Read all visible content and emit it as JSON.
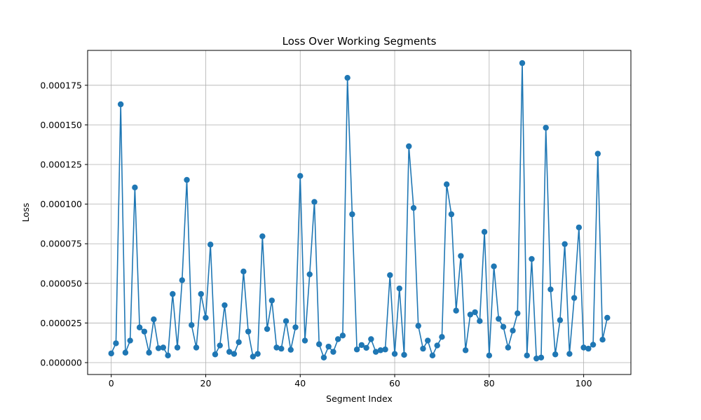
{
  "chart_data": {
    "type": "line",
    "title": "Loss Over Working Segments",
    "xlabel": "Segment Index",
    "ylabel": "Loss",
    "xlim": [
      -5,
      110
    ],
    "ylim": [
      -7.5e-06,
      0.000197
    ],
    "xticks": [
      0,
      20,
      40,
      60,
      80,
      100
    ],
    "xtick_labels": [
      "0",
      "20",
      "40",
      "60",
      "80",
      "100"
    ],
    "yticks": [
      0,
      2.5e-05,
      5e-05,
      7.5e-05,
      0.0001,
      0.000125,
      0.00015,
      0.000175
    ],
    "ytick_labels": [
      "0.000000",
      "0.000025",
      "0.000050",
      "0.000075",
      "0.000100",
      "0.000125",
      "0.000150",
      "0.000175"
    ],
    "grid": true,
    "marker": "circle",
    "color": "#1f77b4",
    "x": [
      0,
      1,
      2,
      3,
      4,
      5,
      6,
      7,
      8,
      9,
      10,
      11,
      12,
      13,
      14,
      15,
      16,
      17,
      18,
      19,
      20,
      21,
      22,
      23,
      24,
      25,
      26,
      27,
      28,
      29,
      30,
      31,
      32,
      33,
      34,
      35,
      36,
      37,
      38,
      39,
      40,
      41,
      42,
      43,
      44,
      45,
      46,
      47,
      48,
      49,
      50,
      51,
      52,
      53,
      54,
      55,
      56,
      57,
      58,
      59,
      60,
      61,
      62,
      63,
      64,
      65,
      66,
      67,
      68,
      69,
      70,
      71,
      72,
      73,
      74,
      75,
      76,
      77,
      78,
      79,
      80,
      81,
      82,
      83,
      84,
      85,
      86,
      87,
      88,
      89,
      90,
      91,
      92,
      93,
      94,
      95,
      96,
      97,
      98,
      99,
      100,
      101,
      102,
      103,
      104,
      105
    ],
    "y": [
      5.8e-06,
      1.22e-05,
      0.000163,
      6.3e-06,
      1.39e-05,
      0.0001105,
      2.22e-05,
      1.96e-05,
      6.3e-06,
      2.73e-05,
      9.1e-06,
      9.5e-06,
      4.5e-06,
      4.33e-05,
      9.5e-06,
      5.2e-05,
      0.0001153,
      2.37e-05,
      9.5e-06,
      4.33e-05,
      2.83e-05,
      7.45e-05,
      5.2e-06,
      1.08e-05,
      3.62e-05,
      6.8e-06,
      5.5e-06,
      1.29e-05,
      5.75e-05,
      1.96e-05,
      3.8e-06,
      5.5e-06,
      7.97e-05,
      2.12e-05,
      3.92e-05,
      9.5e-06,
      8.8e-06,
      2.62e-05,
      8.1e-06,
      2.23e-05,
      0.0001178,
      1.39e-05,
      5.57e-05,
      0.0001014,
      1.16e-05,
      3.2e-06,
      1.01e-05,
      6.8e-06,
      1.48e-05,
      1.71e-05,
      0.0001797,
      9.36e-05,
      8.3e-06,
      1.11e-05,
      9.3e-06,
      1.48e-05,
      6.8e-06,
      7.8e-06,
      8.3e-06,
      5.52e-05,
      5.5e-06,
      4.68e-05,
      4.9e-06,
      0.0001365,
      9.76e-05,
      2.32e-05,
      8.8e-06,
      1.39e-05,
      4.5e-06,
      1.08e-05,
      1.62e-05,
      0.0001125,
      9.36e-05,
      3.28e-05,
      6.73e-05,
      7.8e-06,
      3.03e-05,
      3.18e-05,
      2.62e-05,
      8.25e-05,
      4.5e-06,
      6.07e-05,
      2.76e-05,
      2.26e-05,
      9.5e-06,
      2.02e-05,
      3.11e-05,
      0.000189,
      4.5e-06,
      6.54e-05,
      2.6e-06,
      3.2e-06,
      0.0001482,
      4.62e-05,
      5.2e-06,
      2.68e-05,
      7.48e-05,
      5.5e-06,
      4.08e-05,
      8.53e-05,
      9.5e-06,
      8.8e-06,
      1.13e-05,
      0.0001318,
      1.45e-05,
      2.83e-05
    ]
  }
}
